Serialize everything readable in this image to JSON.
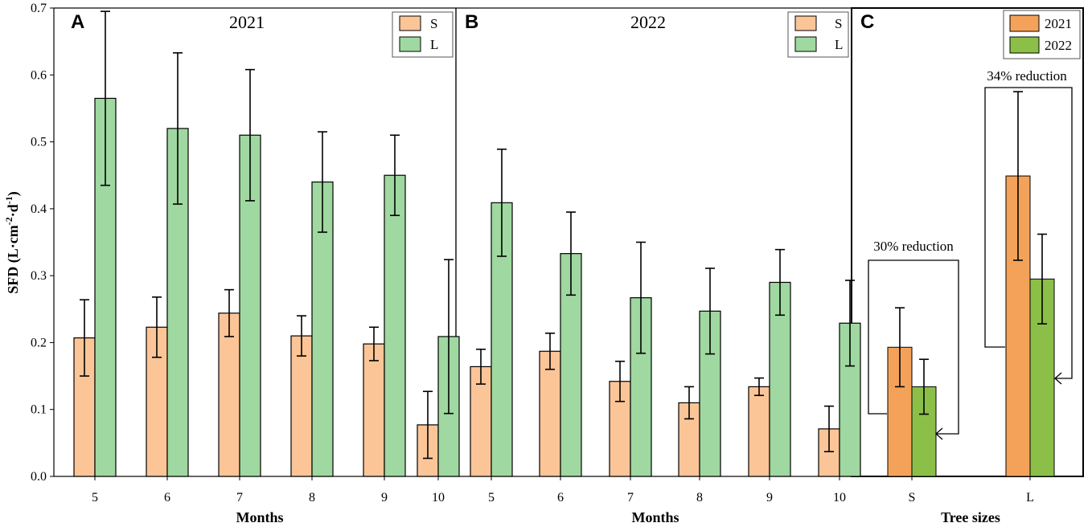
{
  "figure": {
    "y_axis_title_prefix": "SFD (L·cm",
    "y_axis_title_sup1": "-2",
    "y_axis_title_mid": "·d",
    "y_axis_title_sup2": "-1",
    "y_axis_title_suffix": ")",
    "y_ticks": [
      "0.0",
      "0.1",
      "0.2",
      "0.3",
      "0.4",
      "0.5",
      "0.6",
      "0.7"
    ]
  },
  "chart_data": [
    {
      "panel": "A",
      "type": "bar",
      "title": "2021",
      "xlabel": "Months",
      "ylabel": "SFD (L·cm-2·d-1)",
      "ylim": [
        0,
        0.7
      ],
      "categories": [
        "5",
        "6",
        "7",
        "8",
        "9",
        "10"
      ],
      "series": [
        {
          "name": "S",
          "color": "#fcc598",
          "values": [
            0.207,
            0.223,
            0.244,
            0.21,
            0.198,
            0.077
          ],
          "errors": [
            0.057,
            0.045,
            0.035,
            0.03,
            0.025,
            0.05
          ]
        },
        {
          "name": "L",
          "color": "#9fd8a0",
          "values": [
            0.565,
            0.52,
            0.51,
            0.44,
            0.45,
            0.209
          ],
          "errors": [
            0.13,
            0.113,
            0.098,
            0.075,
            0.06,
            0.115
          ]
        }
      ],
      "legend_position": "top-right"
    },
    {
      "panel": "B",
      "type": "bar",
      "title": "2022",
      "xlabel": "Months",
      "ylabel": "SFD (L·cm-2·d-1)",
      "ylim": [
        0,
        0.7
      ],
      "categories": [
        "5",
        "6",
        "7",
        "8",
        "9",
        "10"
      ],
      "series": [
        {
          "name": "S",
          "color": "#fcc598",
          "values": [
            0.164,
            0.187,
            0.142,
            0.11,
            0.134,
            0.071
          ],
          "errors": [
            0.026,
            0.027,
            0.03,
            0.024,
            0.013,
            0.034
          ]
        },
        {
          "name": "L",
          "color": "#9fd8a0",
          "values": [
            0.409,
            0.333,
            0.267,
            0.247,
            0.29,
            0.229
          ],
          "errors": [
            0.08,
            0.062,
            0.083,
            0.064,
            0.049,
            0.064
          ]
        }
      ],
      "legend_position": "top-right"
    },
    {
      "panel": "C",
      "type": "bar",
      "title": "",
      "xlabel": "Tree sizes",
      "ylabel": "SFD (L·cm-2·d-1)",
      "ylim": [
        0,
        0.7
      ],
      "categories": [
        "S",
        "L"
      ],
      "series": [
        {
          "name": "2021",
          "color": "#f4a259",
          "values": [
            0.193,
            0.449
          ],
          "errors": [
            0.059,
            0.126
          ]
        },
        {
          "name": "2022",
          "color": "#8bbf47",
          "values": [
            0.134,
            0.295
          ],
          "errors": [
            0.041,
            0.067
          ]
        }
      ],
      "annotations": [
        "30% reduction",
        "34% reduction"
      ],
      "legend_position": "top-right"
    }
  ]
}
